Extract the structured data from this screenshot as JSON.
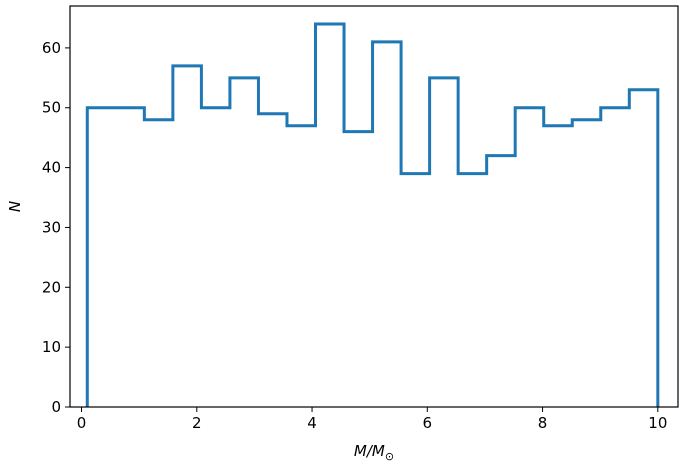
{
  "chart_data": {
    "type": "histogram-step",
    "title": "",
    "xlabel": "M/M",
    "xlabel_subscript": "⊙",
    "ylabel": "N",
    "xlim": [
      -0.2,
      10.35
    ],
    "ylim": [
      0,
      67
    ],
    "xticks": [
      0,
      2,
      4,
      6,
      8,
      10
    ],
    "yticks": [
      0,
      10,
      20,
      30,
      40,
      50,
      60
    ],
    "bin_edges": [
      0.1,
      0.595,
      1.09,
      1.585,
      2.08,
      2.575,
      3.07,
      3.565,
      4.06,
      4.555,
      5.05,
      5.545,
      6.04,
      6.535,
      7.03,
      7.525,
      8.02,
      8.515,
      9.01,
      9.505,
      10.0
    ],
    "counts": [
      50,
      50,
      48,
      57,
      50,
      55,
      49,
      47,
      64,
      46,
      61,
      39,
      55,
      39,
      42,
      50,
      47,
      48,
      50,
      53
    ],
    "line_color": "#1f77b4",
    "grid": false,
    "legend": "none"
  }
}
